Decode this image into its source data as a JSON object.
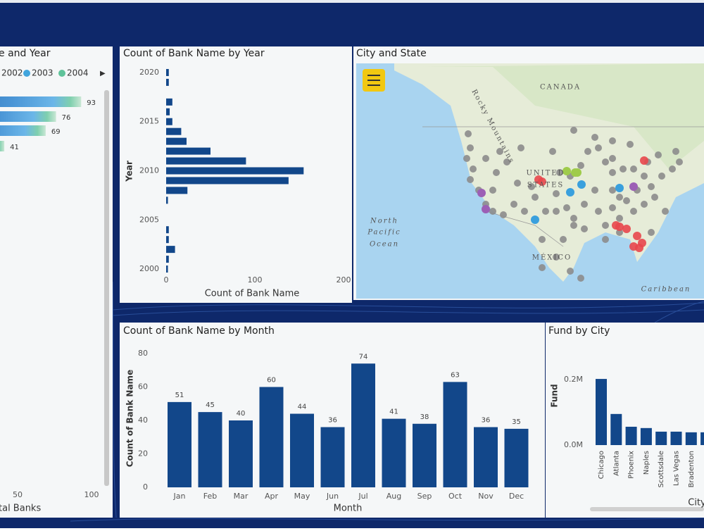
{
  "chart_data": [
    {
      "type": "bar",
      "orientation": "horizontal",
      "title": "e and Year",
      "xlabel": "tal Banks",
      "legend": [
        {
          "name": "2002"
        },
        {
          "name": "2003",
          "color": "#41a5dd"
        },
        {
          "name": "2004",
          "color": "#5fc39a"
        }
      ],
      "values": [
        93,
        76,
        69,
        41
      ],
      "xlim": [
        0,
        100
      ],
      "xticks": [
        50,
        100
      ]
    },
    {
      "type": "bar",
      "orientation": "horizontal",
      "title": "Count of Bank Name by Year",
      "xlabel": "Count of Bank Name",
      "ylabel": "Year",
      "y": [
        2000,
        2001,
        2002,
        2003,
        2004,
        2007,
        2008,
        2009,
        2010,
        2011,
        2012,
        2013,
        2014,
        2015,
        2016,
        2017,
        2019,
        2020
      ],
      "values": [
        2,
        3,
        10,
        3,
        3,
        2,
        24,
        138,
        155,
        90,
        50,
        23,
        17,
        7,
        4,
        7,
        3,
        3
      ],
      "color": "#12478a",
      "xlim": [
        0,
        200
      ],
      "xticks": [
        0,
        100,
        200
      ],
      "ylim": [
        1999.5,
        2020.5
      ],
      "yticks": [
        2000,
        2005,
        2010,
        2015,
        2020
      ]
    },
    {
      "type": "column",
      "title": "Count of Bank Name by Month",
      "xlabel": "Month",
      "ylabel": "Count of Bank Name",
      "categories": [
        "Jan",
        "Feb",
        "Mar",
        "Apr",
        "May",
        "Jun",
        "Jul",
        "Aug",
        "Sep",
        "Oct",
        "Nov",
        "Dec"
      ],
      "values": [
        51,
        45,
        40,
        60,
        44,
        36,
        74,
        41,
        38,
        63,
        36,
        35
      ],
      "color": "#12478a",
      "ylim": [
        0,
        80
      ],
      "yticks": [
        0,
        20,
        40,
        60,
        80
      ]
    },
    {
      "type": "column",
      "title": "Fund by City",
      "xlabel": "City",
      "ylabel": "Fund",
      "categories": [
        "Chicago",
        "Atlanta",
        "Phoenix",
        "Naples",
        "Scottsdale",
        "Las Vegas",
        "Bradenton",
        null
      ],
      "values": [
        202000,
        95000,
        56000,
        52000,
        41000,
        41000,
        39000,
        39000
      ],
      "color": "#12478a",
      "ylim": [
        0,
        200000
      ],
      "yticks": [
        {
          "value": 0,
          "label": "0.0M"
        },
        {
          "value": 200000,
          "label": "0.2M"
        }
      ]
    }
  ],
  "map": {
    "title": "City and State",
    "labels": [
      "CANADA",
      "Rocky Mountains",
      "UNITED",
      "STATES",
      "North",
      "Pacific",
      "Ocean",
      "MÉXICO",
      "Caribbean"
    ]
  }
}
